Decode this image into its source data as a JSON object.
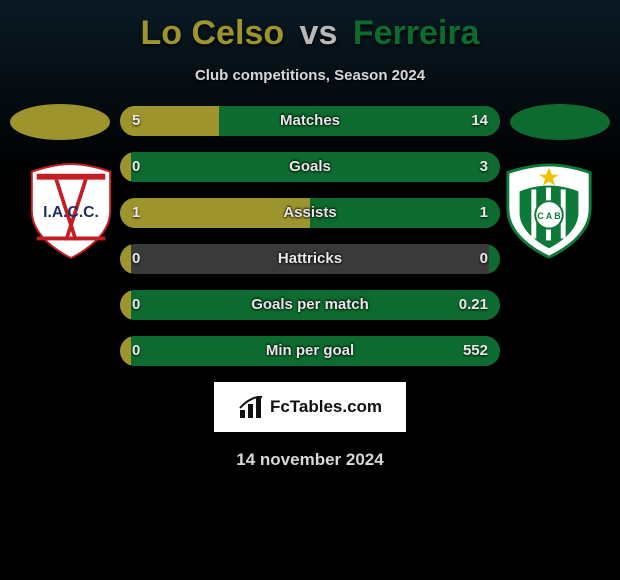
{
  "colors": {
    "player1": "#9e942e",
    "player2": "#0e6b2f",
    "bar_bg": "#3a3a3a",
    "page_bg_top": "#0a1a25",
    "page_bg": "#000000",
    "text_light": "#e8e8e8",
    "text_muted": "#d8d8d8",
    "title_vs": "#b8b8b8"
  },
  "header": {
    "player1_name": "Lo Celso",
    "vs": "vs",
    "player2_name": "Ferreira",
    "subtitle": "Club competitions, Season 2024"
  },
  "club_badges": {
    "left": {
      "bg": "#ffffff",
      "stripe": "#c41e24",
      "stripe2": "#c41e24",
      "text": "I.A.C.C.",
      "text_color": "#1d2f5f"
    },
    "right": {
      "bg": "#ffffff",
      "inner": "#0e7a3a",
      "stripes": "#ffffff",
      "text": "C A B",
      "text_color": "#0e7a3a",
      "star": "#f2c200"
    }
  },
  "stats": [
    {
      "label": "Matches",
      "left_val": "5",
      "right_val": "14",
      "left_pct": 26,
      "right_pct": 74
    },
    {
      "label": "Goals",
      "left_val": "0",
      "right_val": "3",
      "left_pct": 3,
      "right_pct": 97
    },
    {
      "label": "Assists",
      "left_val": "1",
      "right_val": "1",
      "left_pct": 50,
      "right_pct": 50
    },
    {
      "label": "Hattricks",
      "left_val": "0",
      "right_val": "0",
      "left_pct": 3,
      "right_pct": 3
    },
    {
      "label": "Goals per match",
      "left_val": "0",
      "right_val": "0.21",
      "left_pct": 3,
      "right_pct": 97
    },
    {
      "label": "Min per goal",
      "left_val": "0",
      "right_val": "552",
      "left_pct": 3,
      "right_pct": 97
    }
  ],
  "attribution": {
    "text": "FcTables.com"
  },
  "date": "14 november 2024",
  "typography": {
    "title_fontsize": 34,
    "subtitle_fontsize": 15,
    "stat_label_fontsize": 15,
    "stat_val_fontsize": 15,
    "date_fontsize": 17
  }
}
